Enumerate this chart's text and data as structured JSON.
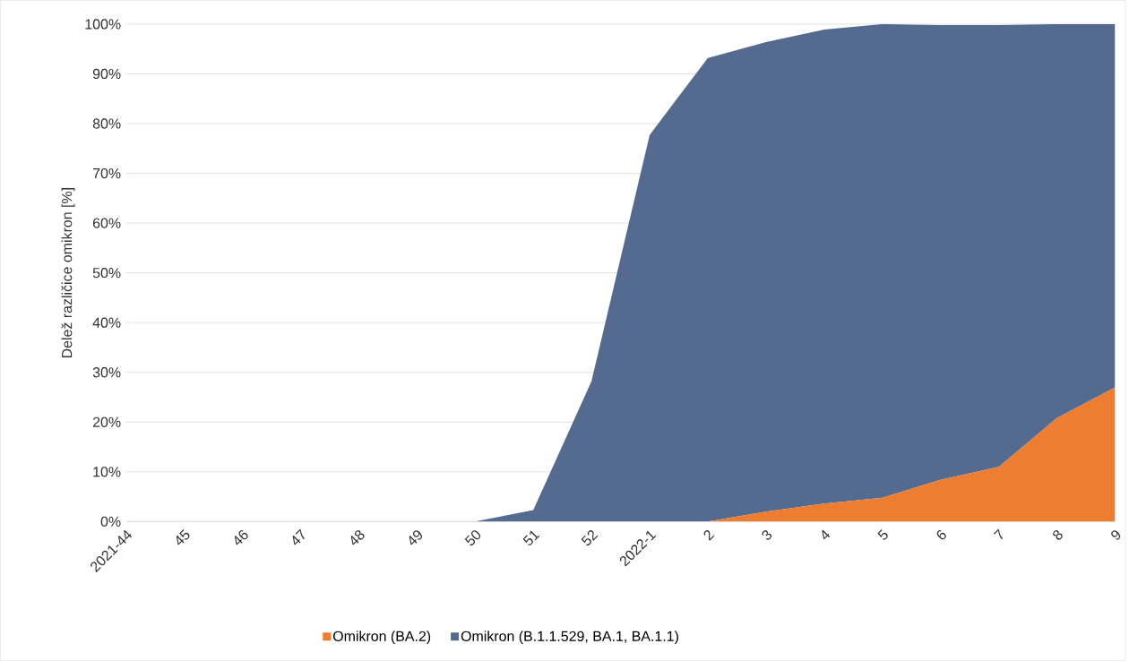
{
  "chart_data": {
    "type": "area",
    "stacked": true,
    "ylabel": "Delež različice omikron [%]",
    "categories": [
      "2021-44",
      "45",
      "46",
      "47",
      "48",
      "49",
      "50",
      "51",
      "52",
      "2022-1",
      "2",
      "3",
      "4",
      "5",
      "6",
      "7",
      "8",
      "9"
    ],
    "series": [
      {
        "name": "Omikron (BA.2)",
        "color": "#ed7d31",
        "values": [
          0,
          0,
          0,
          0,
          0,
          0,
          0,
          0,
          0,
          0,
          0,
          2,
          3.6,
          4.8,
          8.4,
          11,
          20.8,
          27
        ]
      },
      {
        "name": "Omikron (B.1.1.529, BA.1, BA.1.1)",
        "color": "#546a8e",
        "values": [
          0,
          0,
          0,
          0,
          0,
          0,
          0,
          2.3,
          28.2,
          77.7,
          93.2,
          94.4,
          95.3,
          95.2,
          91.4,
          88.8,
          79.2,
          73
        ]
      }
    ],
    "ylim": [
      0,
      100
    ],
    "yticks": [
      {
        "value": 0,
        "label": "0%"
      },
      {
        "value": 10,
        "label": "10%"
      },
      {
        "value": 20,
        "label": "20%"
      },
      {
        "value": 30,
        "label": "30%"
      },
      {
        "value": 40,
        "label": "40%"
      },
      {
        "value": 50,
        "label": "50%"
      },
      {
        "value": 60,
        "label": "60%"
      },
      {
        "value": 70,
        "label": "70%"
      },
      {
        "value": 80,
        "label": "80%"
      },
      {
        "value": 90,
        "label": "90%"
      },
      {
        "value": 100,
        "label": "100%"
      }
    ],
    "grid": "y",
    "legend": "bottom"
  }
}
